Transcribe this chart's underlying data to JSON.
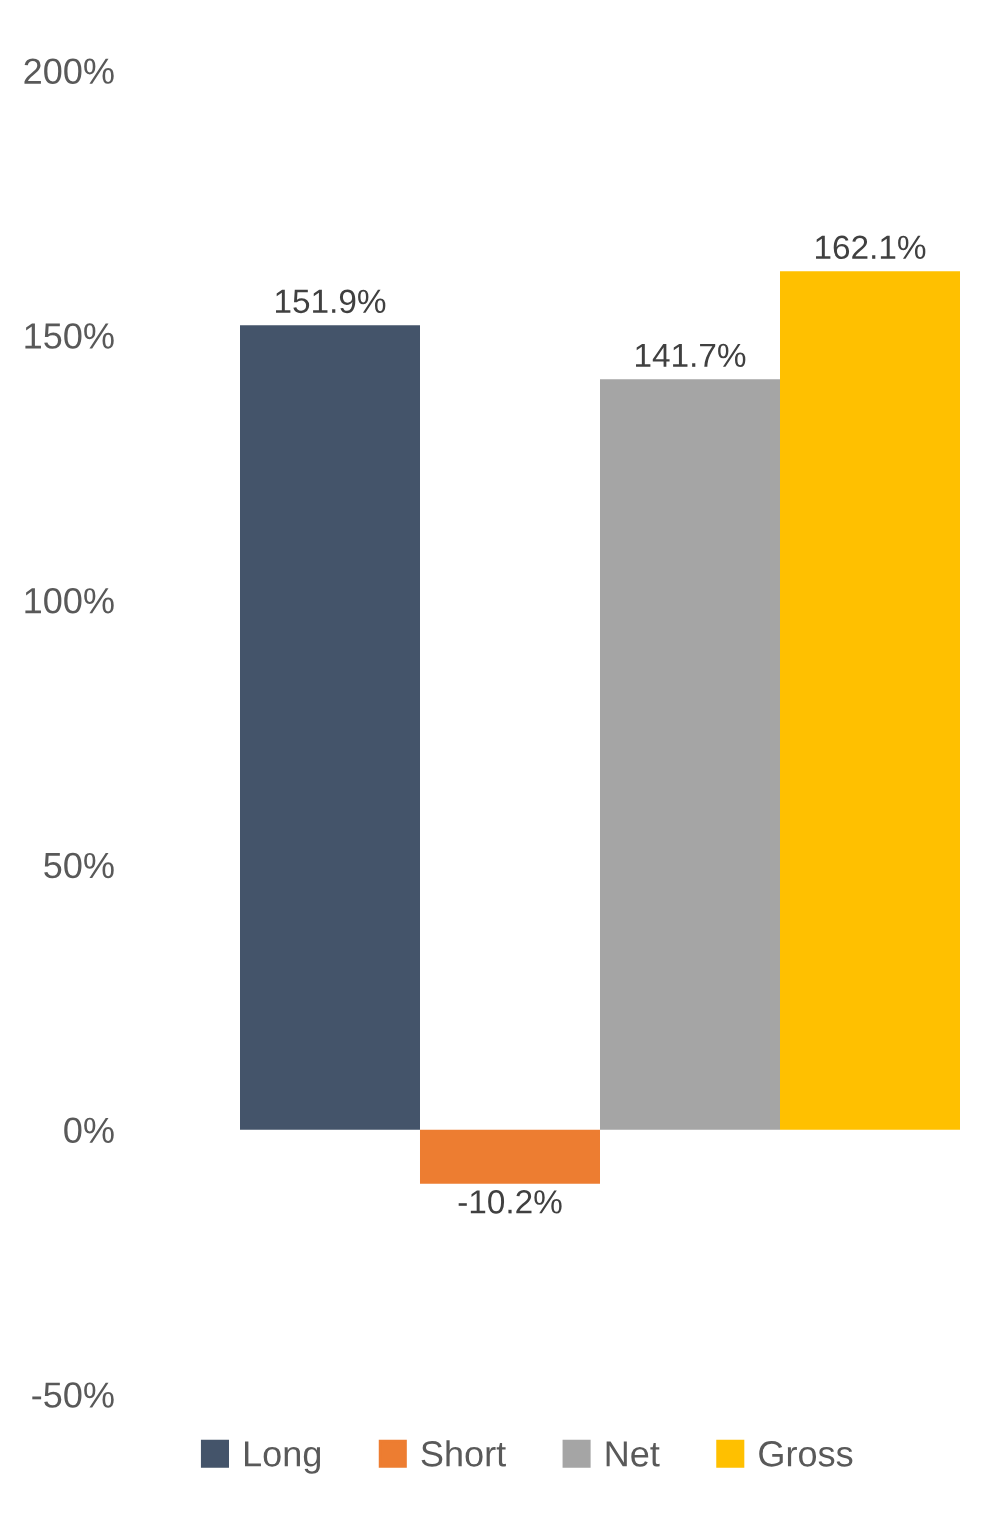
{
  "chart_data": {
    "type": "bar",
    "categories": [
      null
    ],
    "series": [
      {
        "name": "Long",
        "color": "#44546a",
        "values": [
          151.9
        ],
        "value_labels": [
          "151.9%"
        ]
      },
      {
        "name": "Short",
        "color": "#ed7d31",
        "values": [
          -10.2
        ],
        "value_labels": [
          "-10.2%"
        ]
      },
      {
        "name": "Net",
        "color": "#a5a5a5",
        "values": [
          141.7
        ],
        "value_labels": [
          "141.7%"
        ]
      },
      {
        "name": "Gross",
        "color": "#ffc000",
        "values": [
          162.1
        ],
        "value_labels": [
          "162.1%"
        ]
      }
    ],
    "ylim": [
      -50,
      200
    ],
    "yticks": [
      {
        "value": -50,
        "label": "-50%"
      },
      {
        "value": 0,
        "label": "0%"
      },
      {
        "value": 50,
        "label": "50%"
      },
      {
        "value": 100,
        "label": "100%"
      },
      {
        "value": 150,
        "label": "150%"
      },
      {
        "value": 200,
        "label": "200%"
      }
    ],
    "grid": false,
    "legend": "bottom"
  }
}
